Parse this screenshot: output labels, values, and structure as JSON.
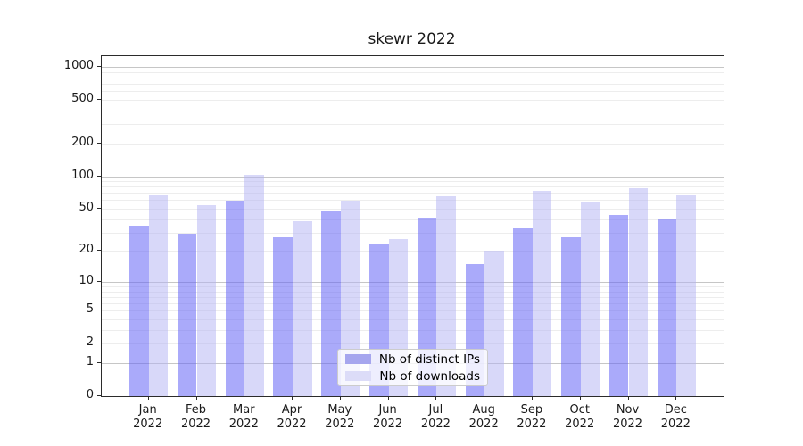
{
  "chart_data": {
    "type": "bar",
    "title": "skewr 2022",
    "categories": [
      "Jan 2022",
      "Feb 2022",
      "Mar 2022",
      "Apr 2022",
      "May 2022",
      "Jun 2022",
      "Jul 2022",
      "Aug 2022",
      "Sep 2022",
      "Oct 2022",
      "Nov 2022",
      "Dec 2022"
    ],
    "month_labels": [
      "Jan",
      "Feb",
      "Mar",
      "Apr",
      "May",
      "Jun",
      "Jul",
      "Aug",
      "Sep",
      "Oct",
      "Nov",
      "Dec"
    ],
    "year_label": "2022",
    "series": [
      {
        "name": "Nb of distinct IPs",
        "legend_color": "#a6a6ee",
        "bar_fill": "rgba(100,100,245,0.55)",
        "values": [
          35,
          29,
          59,
          27,
          48,
          23,
          41,
          15,
          33,
          27,
          44,
          40
        ]
      },
      {
        "name": "Nb of downloads",
        "legend_color": "#dcdcf8",
        "bar_fill": "rgba(178,178,243,0.5)",
        "values": [
          67,
          54,
          102,
          38,
          59,
          26,
          65,
          20,
          73,
          57,
          78,
          66
        ]
      }
    ],
    "y_scale": "log1p",
    "ylim": [
      0,
      1251
    ],
    "y_ticks": [
      1000,
      500,
      200,
      100,
      50,
      20,
      10,
      5,
      2,
      1,
      0
    ],
    "grid": true,
    "legend_position": "lower center",
    "colors": {
      "major_grid": "#c6c6c6",
      "minor_grid": "#ededed",
      "spine": "#2b2b2b"
    }
  }
}
